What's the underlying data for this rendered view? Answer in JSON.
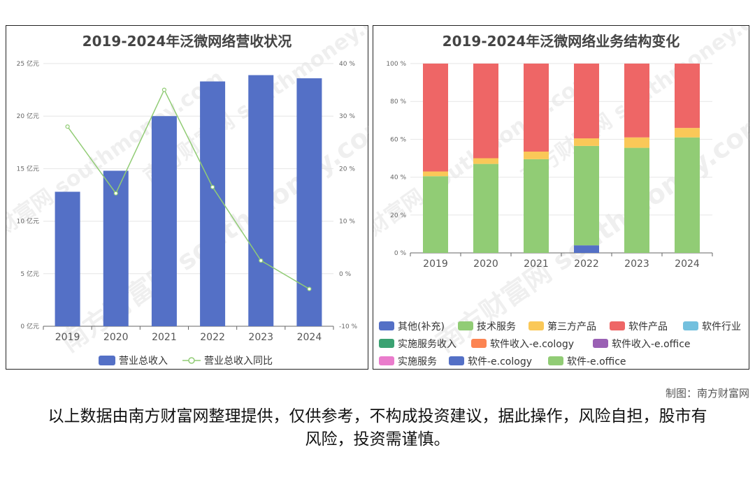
{
  "credit": "制图：南方财富网",
  "disclaimer": "以上数据由南方财富网整理提供，仅供参考，不构成投资建议，据此操作，风险自担，股市有风险，投资需谨慎。",
  "watermark": "南方财富网 southmoney.com",
  "chart_data": [
    {
      "type": "bar",
      "title": "2019-2024年泛微网络营收状况",
      "categories": [
        "2019",
        "2020",
        "2021",
        "2022",
        "2023",
        "2024"
      ],
      "series": [
        {
          "name": "营业总收入",
          "type": "bar",
          "axis": "left",
          "color": "#5470c6",
          "values": [
            12.8,
            14.8,
            20.0,
            23.3,
            23.9,
            23.6
          ]
        },
        {
          "name": "营业总收入同比",
          "type": "line",
          "axis": "right",
          "color": "#91cc75",
          "values": [
            28.0,
            15.3,
            35.0,
            16.5,
            2.5,
            -2.9
          ]
        }
      ],
      "yaxis_left": {
        "ylim": [
          0,
          25
        ],
        "ticks": [
          "0 亿元",
          "5 亿元",
          "10 亿元",
          "15 亿元",
          "20 亿元",
          "25 亿元"
        ]
      },
      "yaxis_right": {
        "ylim": [
          -10,
          40
        ],
        "ticks": [
          "-10 %",
          "0 %",
          "10 %",
          "20 %",
          "30 %",
          "40 %"
        ]
      },
      "grid": true,
      "legend": "bottom"
    },
    {
      "type": "bar",
      "stacked": true,
      "title": "2019-2024年泛微网络业务结构变化",
      "categories": [
        "2019",
        "2020",
        "2021",
        "2022",
        "2023",
        "2024"
      ],
      "yaxis": {
        "ylim": [
          0,
          100
        ],
        "ticks": [
          "0 %",
          "20 %",
          "40 %",
          "60 %",
          "80 %",
          "100 %"
        ]
      },
      "series": [
        {
          "name": "其他(补充)",
          "color": "#5470c6",
          "values": [
            0,
            0,
            0,
            4,
            0,
            0
          ]
        },
        {
          "name": "技术服务",
          "color": "#91cc75",
          "values": [
            40.5,
            47,
            49.5,
            52.5,
            55.5,
            61
          ]
        },
        {
          "name": "第三方产品",
          "color": "#fac858",
          "values": [
            2.5,
            3,
            4,
            4,
            5.5,
            5
          ]
        },
        {
          "name": "软件产品",
          "color": "#ee6666",
          "values": [
            57,
            50,
            46.5,
            39.5,
            39,
            34
          ]
        },
        {
          "name": "软件行业",
          "color": "#73c0de",
          "values": [
            0,
            0,
            0,
            0,
            0,
            0
          ]
        },
        {
          "name": "实施服务收入",
          "color": "#3ba272",
          "values": [
            0,
            0,
            0,
            0,
            0,
            0
          ]
        },
        {
          "name": "软件收入-e.cology",
          "color": "#fc8452",
          "values": [
            0,
            0,
            0,
            0,
            0,
            0
          ]
        },
        {
          "name": "软件收入-e.office",
          "color": "#9a60b4",
          "values": [
            0,
            0,
            0,
            0,
            0,
            0
          ]
        },
        {
          "name": "实施服务",
          "color": "#ea7ccc",
          "values": [
            0,
            0,
            0,
            0,
            0,
            0
          ]
        },
        {
          "name": "软件-e.cology",
          "color": "#5470c6",
          "values": [
            0,
            0,
            0,
            0,
            0,
            0
          ]
        },
        {
          "name": "软件-e.office",
          "color": "#91cc75",
          "values": [
            0,
            0,
            0,
            0,
            0,
            0
          ]
        }
      ],
      "grid": true,
      "legend": "bottom"
    }
  ]
}
